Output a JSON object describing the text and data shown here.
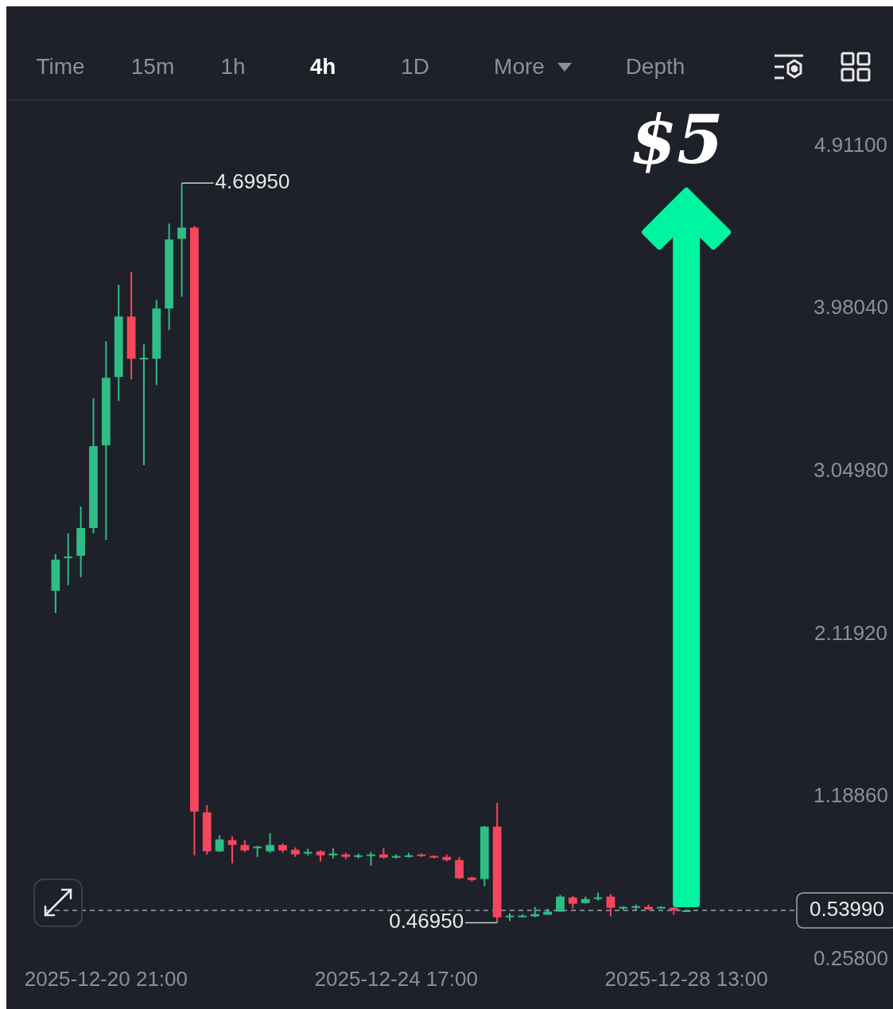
{
  "chart_data": {
    "type": "candlestick",
    "x": [
      "2025-12-20T05:00",
      "2025-12-20T09:00",
      "2025-12-20T13:00",
      "2025-12-20T17:00",
      "2025-12-20T21:00",
      "2025-12-21T01:00",
      "2025-12-21T05:00",
      "2025-12-21T09:00",
      "2025-12-21T13:00",
      "2025-12-21T17:00",
      "2025-12-21T21:00",
      "2025-12-22T01:00",
      "2025-12-22T05:00",
      "2025-12-22T09:00",
      "2025-12-22T13:00",
      "2025-12-22T17:00",
      "2025-12-22T21:00",
      "2025-12-23T01:00",
      "2025-12-23T05:00",
      "2025-12-23T09:00",
      "2025-12-23T13:00",
      "2025-12-23T17:00",
      "2025-12-23T21:00",
      "2025-12-24T01:00",
      "2025-12-24T05:00",
      "2025-12-24T09:00",
      "2025-12-24T13:00",
      "2025-12-24T17:00",
      "2025-12-24T21:00",
      "2025-12-25T01:00",
      "2025-12-25T05:00",
      "2025-12-25T09:00",
      "2025-12-25T13:00",
      "2025-12-25T17:00",
      "2025-12-25T21:00",
      "2025-12-26T01:00",
      "2025-12-26T05:00",
      "2025-12-26T09:00",
      "2025-12-26T13:00",
      "2025-12-26T17:00",
      "2025-12-26T21:00",
      "2025-12-27T01:00",
      "2025-12-27T05:00",
      "2025-12-27T09:00",
      "2025-12-27T13:00",
      "2025-12-27T17:00",
      "2025-12-27T21:00",
      "2025-12-28T01:00",
      "2025-12-28T05:00",
      "2025-12-28T09:00",
      "2025-12-28T13:00"
    ],
    "ohlc": [
      [
        2.368,
        2.578,
        2.241,
        2.546
      ],
      [
        2.555,
        2.696,
        2.4,
        2.564
      ],
      [
        2.568,
        2.85,
        2.446,
        2.727
      ],
      [
        2.727,
        3.468,
        2.696,
        3.195
      ],
      [
        3.2,
        3.795,
        2.659,
        3.586
      ],
      [
        3.591,
        4.118,
        3.454,
        3.936
      ],
      [
        3.936,
        4.191,
        3.577,
        3.695
      ],
      [
        3.695,
        3.777,
        3.086,
        3.7
      ],
      [
        3.695,
        4.032,
        3.545,
        3.982
      ],
      [
        3.982,
        4.468,
        3.859,
        4.377
      ],
      [
        4.381,
        4.6995,
        4.05,
        4.445
      ],
      [
        4.445,
        4.454,
        0.855,
        1.105
      ],
      [
        1.101,
        1.142,
        0.86,
        0.878
      ],
      [
        0.878,
        0.969,
        0.874,
        0.946
      ],
      [
        0.942,
        0.964,
        0.81,
        0.914
      ],
      [
        0.914,
        0.942,
        0.874,
        0.883
      ],
      [
        0.896,
        0.91,
        0.846,
        0.905
      ],
      [
        0.878,
        0.982,
        0.869,
        0.914
      ],
      [
        0.914,
        0.923,
        0.869,
        0.883
      ],
      [
        0.887,
        0.901,
        0.846,
        0.86
      ],
      [
        0.865,
        0.892,
        0.855,
        0.874
      ],
      [
        0.878,
        0.883,
        0.819,
        0.855
      ],
      [
        0.855,
        0.896,
        0.837,
        0.865
      ],
      [
        0.86,
        0.869,
        0.833,
        0.846
      ],
      [
        0.851,
        0.865,
        0.837,
        0.855
      ],
      [
        0.855,
        0.874,
        0.796,
        0.86
      ],
      [
        0.86,
        0.896,
        0.837,
        0.842
      ],
      [
        0.846,
        0.86,
        0.837,
        0.851
      ],
      [
        0.851,
        0.869,
        0.842,
        0.855
      ],
      [
        0.86,
        0.865,
        0.846,
        0.851
      ],
      [
        0.851,
        0.855,
        0.837,
        0.842
      ],
      [
        0.846,
        0.86,
        0.819,
        0.828
      ],
      [
        0.828,
        0.846,
        0.719,
        0.724
      ],
      [
        0.728,
        0.733,
        0.705,
        0.714
      ],
      [
        0.719,
        1.023,
        0.678,
        1.019
      ],
      [
        1.019,
        1.155,
        0.4695,
        0.501
      ],
      [
        0.501,
        0.524,
        0.479,
        0.51
      ],
      [
        0.506,
        0.519,
        0.501,
        0.51
      ],
      [
        0.506,
        0.56,
        0.501,
        0.519
      ],
      [
        0.515,
        0.551,
        0.515,
        0.533
      ],
      [
        0.533,
        0.628,
        0.533,
        0.619
      ],
      [
        0.614,
        0.623,
        0.551,
        0.578
      ],
      [
        0.582,
        0.619,
        0.578,
        0.605
      ],
      [
        0.61,
        0.642,
        0.596,
        0.614
      ],
      [
        0.619,
        0.633,
        0.506,
        0.555
      ],
      [
        0.556,
        0.564,
        0.542,
        0.56
      ],
      [
        0.56,
        0.573,
        0.542,
        0.564
      ],
      [
        0.56,
        0.573,
        0.542,
        0.546
      ],
      [
        0.556,
        0.564,
        0.551,
        0.56
      ],
      [
        0.555,
        0.56,
        0.515,
        0.542
      ],
      [
        0.538,
        0.542,
        0.533,
        0.5399
      ]
    ],
    "xlim": [
      "2025-12-20T02:00",
      "2025-12-29T23:00"
    ],
    "xticks": [
      {
        "value": "2025-12-20T21:00",
        "label": "2025-12-20 21:00"
      },
      {
        "value": "2025-12-24T17:00",
        "label": "2025-12-24 17:00"
      },
      {
        "value": "2025-12-28T13:00",
        "label": "2025-12-28 13:00"
      }
    ],
    "ylim": [
      0.258,
      5.16
    ],
    "yticks": [
      {
        "value": 0.258,
        "label": "0.25800"
      },
      {
        "value": 1.1886,
        "label": "1.18860"
      },
      {
        "value": 2.1192,
        "label": "2.11920"
      },
      {
        "value": 3.0498,
        "label": "3.04980"
      },
      {
        "value": 3.9804,
        "label": "3.98040"
      },
      {
        "value": 4.911,
        "label": "4.91100"
      }
    ],
    "ref_lines": [
      {
        "axis": "y",
        "value": 0.5399,
        "label": "0.53990",
        "color": "#9ea3ad",
        "line_style": "dashed"
      }
    ],
    "annotations": [
      "Time",
      "15m",
      "1h",
      "4h",
      "1D",
      "More",
      "Depth",
      {
        "text": "4.69950",
        "x": "2025-12-21T21:00",
        "y": 4.6995
      },
      {
        "text": "0.46950",
        "x": "2025-12-26T01:00",
        "y": 0.4695
      },
      "$5"
    ]
  }
}
